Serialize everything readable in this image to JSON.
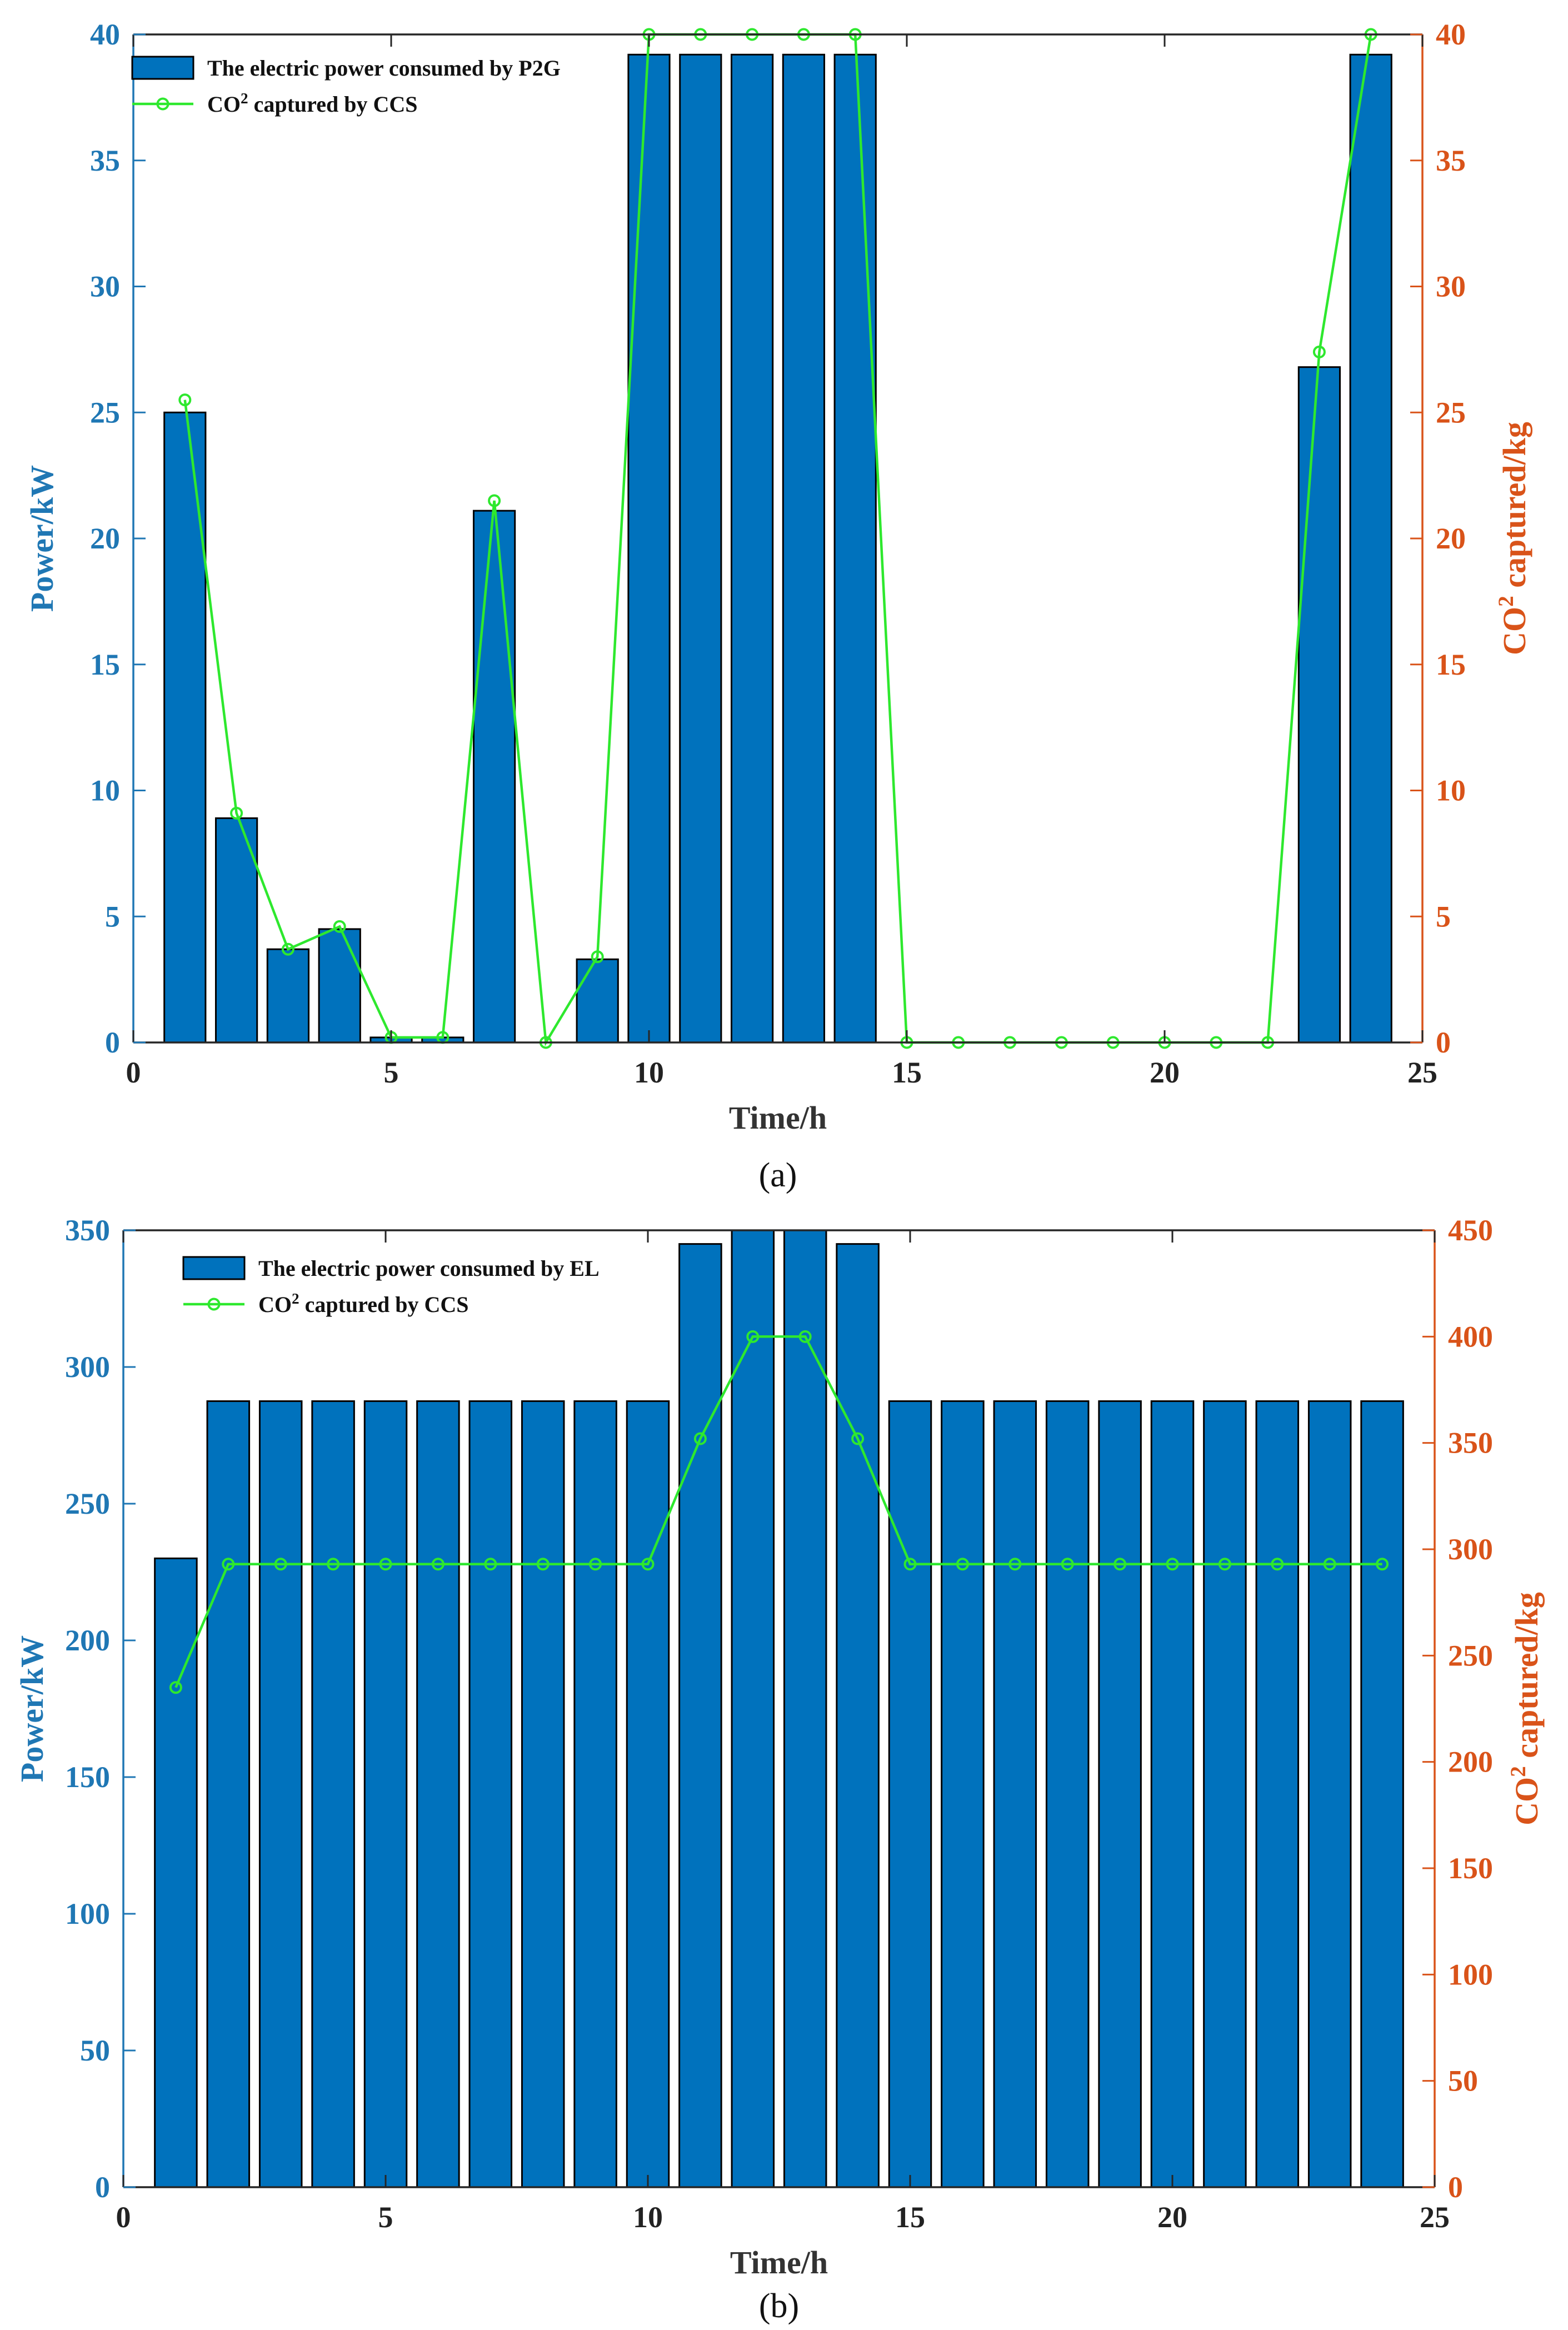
{
  "chart_data": [
    {
      "type": "bar",
      "caption": "(a)",
      "xlabel": "Time/h",
      "ylabel": "Power/kW",
      "y2label": "CO2 captured/kg",
      "xlim": [
        0,
        25
      ],
      "ylim": [
        0,
        40
      ],
      "y2lim": [
        0,
        40
      ],
      "xticks": [
        "0",
        "5",
        "10",
        "15",
        "20",
        "25"
      ],
      "yticks": [
        "0",
        "5",
        "10",
        "15",
        "20",
        "25",
        "30",
        "35",
        "40"
      ],
      "y2ticks": [
        "0",
        "5",
        "10",
        "15",
        "20",
        "25",
        "30",
        "35",
        "40"
      ],
      "legend_position": "top-left",
      "colors": {
        "bar": "#0072bd",
        "line": "#2ee82e",
        "left_axis": "#1f77b4",
        "right_axis": "#d95319"
      },
      "x": [
        1,
        2,
        3,
        4,
        5,
        6,
        7,
        8,
        9,
        10,
        11,
        12,
        13,
        14,
        15,
        16,
        17,
        18,
        19,
        20,
        21,
        22,
        23,
        24
      ],
      "series": [
        {
          "name": "The electric power consumed by P2G",
          "type": "bar",
          "axis": "left",
          "values": [
            25.0,
            8.9,
            3.7,
            4.5,
            0.2,
            0.2,
            21.1,
            0,
            3.3,
            39.2,
            39.2,
            39.2,
            39.2,
            39.2,
            0,
            0,
            0,
            0,
            0,
            0,
            0,
            0,
            26.8,
            39.2
          ]
        },
        {
          "name": "CO2 captured by CCS",
          "type": "line",
          "axis": "right",
          "values": [
            25.5,
            9.1,
            3.7,
            4.6,
            0.2,
            0.2,
            21.5,
            0,
            3.4,
            40,
            40,
            40,
            40,
            40,
            0,
            0,
            0,
            0,
            0,
            0,
            0,
            0,
            27.4,
            40
          ]
        }
      ]
    },
    {
      "type": "bar",
      "caption": "(b)",
      "xlabel": "Time/h",
      "ylabel": "Power/kW",
      "y2label": "CO2 captured/kg",
      "xlim": [
        0,
        25
      ],
      "ylim": [
        0,
        350
      ],
      "y2lim": [
        0,
        450
      ],
      "xticks": [
        "0",
        "5",
        "10",
        "15",
        "20",
        "25"
      ],
      "yticks": [
        "0",
        "50",
        "100",
        "150",
        "200",
        "250",
        "300",
        "350"
      ],
      "y2ticks": [
        "0",
        "50",
        "100",
        "150",
        "200",
        "250",
        "300",
        "350",
        "400",
        "450"
      ],
      "legend_position": "top-left",
      "colors": {
        "bar": "#0072bd",
        "line": "#2ee82e",
        "left_axis": "#1f77b4",
        "right_axis": "#d95319"
      },
      "x": [
        1,
        2,
        3,
        4,
        5,
        6,
        7,
        8,
        9,
        10,
        11,
        12,
        13,
        14,
        15,
        16,
        17,
        18,
        19,
        20,
        21,
        22,
        23,
        24
      ],
      "series": [
        {
          "name": "The electric power consumed by EL",
          "type": "bar",
          "axis": "left",
          "values": [
            230,
            287.5,
            287.5,
            287.5,
            287.5,
            287.5,
            287.5,
            287.5,
            287.5,
            287.5,
            345,
            350,
            350,
            345,
            287.5,
            287.5,
            287.5,
            287.5,
            287.5,
            287.5,
            287.5,
            287.5,
            287.5,
            287.5
          ]
        },
        {
          "name": "CO2 captured by CCS",
          "type": "line",
          "axis": "right",
          "values": [
            235,
            293,
            293,
            293,
            293,
            293,
            293,
            293,
            293,
            293,
            352,
            400,
            400,
            352,
            293,
            293,
            293,
            293,
            293,
            293,
            293,
            293,
            293,
            293
          ]
        }
      ]
    }
  ]
}
